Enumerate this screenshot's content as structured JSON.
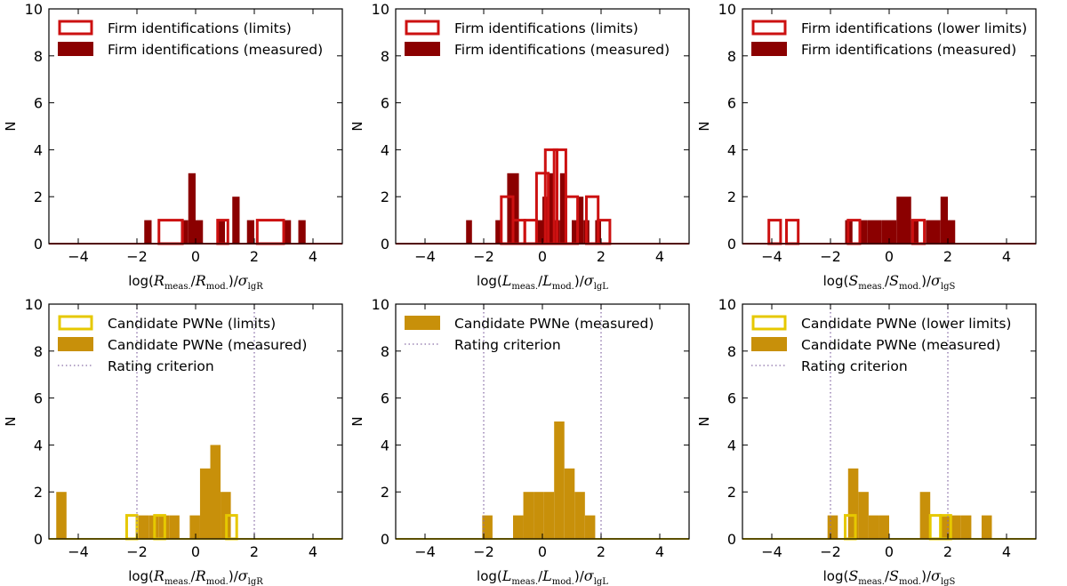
{
  "colors": {
    "firm": "#8b0000",
    "firm_edge": "#cc1111",
    "cand": "#c8900a",
    "cand_edge": "#e6c800",
    "rating": "#8a6fa8"
  },
  "chart_data": [
    {
      "type": "histogram",
      "panel": "firm-radius",
      "xlabel_base": "log(",
      "xlabel_num": "R",
      "xlabel_num_sub": "meas.",
      "xlabel_den": "R",
      "xlabel_den_sub": "mod.",
      "xlabel_sigma_sub": "lgR",
      "ylabel": "N",
      "xlim": [
        -5,
        5
      ],
      "ylim": [
        0,
        10
      ],
      "xticks": [
        "−4",
        "−2",
        "0",
        "2",
        "4"
      ],
      "yticks": [
        "0",
        "2",
        "4",
        "6",
        "8",
        "10"
      ],
      "legend": [
        "Firm identifications (limits)",
        "Firm identifications (measured)"
      ],
      "rating_lines": [],
      "measured": {
        "x0": -1.75,
        "width": 0.25,
        "values": [
          1,
          0,
          0,
          0,
          0,
          1,
          3,
          1,
          0,
          0,
          1,
          0,
          2,
          0,
          1,
          0,
          0,
          0,
          0,
          1,
          0,
          1
        ]
      },
      "limits": [
        [
          -1.25,
          0.8,
          1
        ],
        [
          0.75,
          0.35,
          1
        ],
        [
          2.1,
          0.9,
          1
        ]
      ]
    },
    {
      "type": "histogram",
      "panel": "firm-luminosity",
      "xlabel_base": "log(",
      "xlabel_num": "L",
      "xlabel_num_sub": "meas.",
      "xlabel_den": "L",
      "xlabel_den_sub": "mod.",
      "xlabel_sigma_sub": "lgL",
      "ylabel": "N",
      "xlim": [
        -5,
        5
      ],
      "ylim": [
        0,
        10
      ],
      "xticks": [
        "−4",
        "−2",
        "0",
        "2",
        "4"
      ],
      "yticks": [
        "0",
        "2",
        "4",
        "6",
        "8",
        "10"
      ],
      "legend": [
        "Firm identifications (limits)",
        "Firm identifications (measured)"
      ],
      "rating_lines": [],
      "measured": {
        "x0": -2.6,
        "width": 0.2,
        "values": [
          1,
          0,
          0,
          0,
          0,
          1,
          0,
          3,
          3,
          0,
          0,
          0,
          1,
          2,
          3,
          1,
          3,
          0,
          1,
          2,
          1,
          0,
          1
        ]
      },
      "limits": [
        [
          -1.4,
          0.4,
          2
        ],
        [
          -1.0,
          0.4,
          1
        ],
        [
          -0.6,
          0.4,
          1
        ],
        [
          -0.2,
          0.4,
          3
        ],
        [
          0.1,
          0.4,
          4
        ],
        [
          0.4,
          0.4,
          4
        ],
        [
          0.8,
          0.4,
          2
        ],
        [
          1.5,
          0.4,
          2
        ],
        [
          1.9,
          0.4,
          1
        ]
      ]
    },
    {
      "type": "histogram",
      "panel": "firm-flux",
      "xlabel_base": "log(",
      "xlabel_num": "S",
      "xlabel_num_sub": "meas.",
      "xlabel_den": "S",
      "xlabel_den_sub": "mod.",
      "xlabel_sigma_sub": "lgS",
      "ylabel": "N",
      "xlim": [
        -5,
        5
      ],
      "ylim": [
        0,
        10
      ],
      "xticks": [
        "−4",
        "−2",
        "0",
        "2",
        "4"
      ],
      "yticks": [
        "0",
        "2",
        "4",
        "6",
        "8",
        "10"
      ],
      "legend": [
        "Firm identifications (lower limits)",
        "Firm identifications (measured)"
      ],
      "rating_lines": [],
      "measured": {
        "x0": -1.5,
        "width": 0.25,
        "values": [
          1,
          0,
          1,
          1,
          1,
          1,
          1,
          2,
          2,
          1,
          0,
          1,
          1,
          2,
          1
        ]
      },
      "limits": [
        [
          -4.1,
          0.4,
          1
        ],
        [
          -3.5,
          0.4,
          1
        ],
        [
          -1.4,
          0.4,
          1
        ],
        [
          0.8,
          0.4,
          1
        ]
      ]
    },
    {
      "type": "histogram",
      "panel": "candidate-radius",
      "xlabel_base": "log(",
      "xlabel_num": "R",
      "xlabel_num_sub": "meas.",
      "xlabel_den": "R",
      "xlabel_den_sub": "mod.",
      "xlabel_sigma_sub": "lgR",
      "ylabel": "N",
      "xlim": [
        -5,
        5
      ],
      "ylim": [
        0,
        10
      ],
      "xticks": [
        "−4",
        "−2",
        "0",
        "2",
        "4"
      ],
      "yticks": [
        "0",
        "2",
        "4",
        "6",
        "8",
        "10"
      ],
      "legend": [
        "Candidate PWNe (limits)",
        "Candidate PWNe (measured)",
        "Rating criterion"
      ],
      "rating_lines": [
        -2,
        2
      ],
      "measured": {
        "x0": -4.75,
        "width": 0.35,
        "values": [
          2,
          0,
          0,
          0,
          0,
          0,
          0,
          0,
          1,
          1,
          1,
          1,
          0,
          1,
          3,
          4,
          2
        ]
      },
      "limits": [
        [
          -2.35,
          0.35,
          1
        ],
        [
          -1.4,
          0.35,
          1
        ],
        [
          1.05,
          0.35,
          1
        ]
      ]
    },
    {
      "type": "histogram",
      "panel": "candidate-luminosity",
      "xlabel_base": "log(",
      "xlabel_num": "L",
      "xlabel_num_sub": "meas.",
      "xlabel_den": "L",
      "xlabel_den_sub": "mod.",
      "xlabel_sigma_sub": "lgL",
      "ylabel": "N",
      "xlim": [
        -5,
        5
      ],
      "ylim": [
        0,
        10
      ],
      "xticks": [
        "−4",
        "−2",
        "0",
        "2",
        "4"
      ],
      "yticks": [
        "0",
        "2",
        "4",
        "6",
        "8",
        "10"
      ],
      "legend": [
        "Candidate PWNe (measured)",
        "Rating criterion"
      ],
      "rating_lines": [
        -2,
        2
      ],
      "measured": {
        "x0": -2.05,
        "width": 0.35,
        "values": [
          1,
          0,
          0,
          1,
          2,
          2,
          2,
          5,
          3,
          2,
          1
        ]
      },
      "limits": []
    },
    {
      "type": "histogram",
      "panel": "candidate-flux",
      "xlabel_base": "log(",
      "xlabel_num": "S",
      "xlabel_num_sub": "meas.",
      "xlabel_den": "S",
      "xlabel_den_sub": "mod.",
      "xlabel_sigma_sub": "lgS",
      "ylabel": "N",
      "xlim": [
        -5,
        5
      ],
      "ylim": [
        0,
        10
      ],
      "xticks": [
        "−4",
        "−2",
        "0",
        "2",
        "4"
      ],
      "yticks": [
        "0",
        "2",
        "4",
        "6",
        "8",
        "10"
      ],
      "legend": [
        "Candidate PWNe (lower limits)",
        "Candidate PWNe (measured)",
        "Rating criterion"
      ],
      "rating_lines": [
        -2,
        2
      ],
      "measured": {
        "x0": -2.1,
        "width": 0.35,
        "values": [
          1,
          0,
          3,
          2,
          1,
          1,
          0,
          0,
          0,
          2,
          0,
          1,
          1,
          1,
          0,
          1
        ]
      },
      "limits": [
        [
          -1.5,
          0.35,
          1
        ],
        [
          1.4,
          0.35,
          1
        ],
        [
          1.75,
          0.35,
          1
        ]
      ]
    }
  ]
}
